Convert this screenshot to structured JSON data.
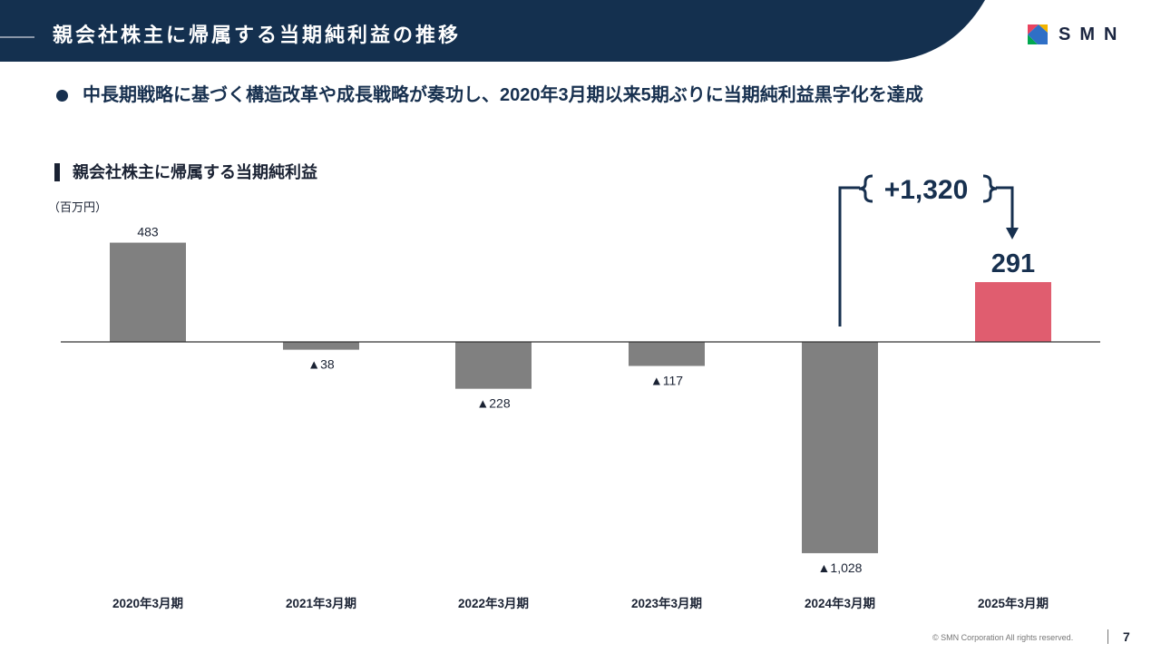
{
  "header": {
    "title": "親会社株主に帰属する当期純利益の推移",
    "bg_color": "#14304f",
    "logo_text": "SMN",
    "logo_colors": [
      "#e9435f",
      "#f2b400",
      "#00a84f",
      "#2f6fc6"
    ]
  },
  "headline": "中長期戦略に基づく構造改革や成長戦略が奏功し、2020年3月期以来5期ぶりに当期純利益黒字化を達成",
  "section_title": "親会社株主に帰属する当期純利益",
  "unit_label": "（百万円）",
  "change_annotation": "+1,320",
  "chart_data": {
    "type": "bar",
    "categories": [
      "2020年3月期",
      "2021年3月期",
      "2022年3月期",
      "2023年3月期",
      "2024年3月期",
      "2025年3月期"
    ],
    "values": [
      483,
      -38,
      -228,
      -117,
      -1028,
      291
    ],
    "value_labels": [
      "483",
      "▲38",
      "▲228",
      "▲117",
      "▲1,028",
      "291"
    ],
    "colors": [
      "#808080",
      "#808080",
      "#808080",
      "#808080",
      "#808080",
      "#e05d6f"
    ],
    "highlight_index": 5,
    "title": "親会社株主に帰属する当期純利益",
    "ylabel": "（百万円）",
    "grid": false
  },
  "footer": {
    "copyright": "© SMN Corporation All rights reserved.",
    "page_number": "7"
  }
}
